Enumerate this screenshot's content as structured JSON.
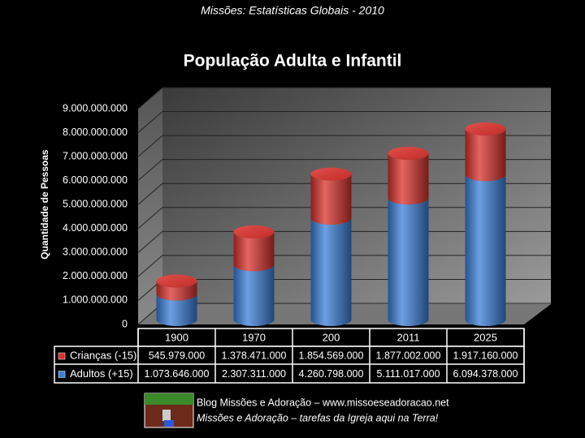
{
  "header": "Missões: Estatísticas Globais - 2010",
  "chart_data": {
    "type": "bar",
    "stacked": true,
    "title": "População Adulta e Infantil",
    "y_label": "Quantidade de Pessoas",
    "categories": [
      "1900",
      "1970",
      "200",
      "2011",
      "2025"
    ],
    "series": [
      {
        "name": "Adultos (+15)",
        "color": "#3b7fd9",
        "values": [
          1073646000,
          2307311000,
          4260798000,
          5111017000,
          6094378000
        ],
        "value_labels": [
          "1.073.646.000",
          "2.307.311.000",
          "4.260.798.000",
          "5.111.017.000",
          "6.094.378.000"
        ]
      },
      {
        "name": "Crianças (-15)",
        "color": "#d9312c",
        "values": [
          545979000,
          1378471000,
          1854569000,
          1877002000,
          1917160000
        ],
        "value_labels": [
          "545.979.000",
          "1.378.471.000",
          "1.854.569.000",
          "1.877.002.000",
          "1.917.160.000"
        ]
      }
    ],
    "ylim": [
      0,
      9000000000
    ],
    "yticks": [
      0,
      {
        "value": 1000000000,
        "label": "1.000.000.000"
      },
      {
        "value": 2000000000,
        "label": "2.000.000.000"
      },
      {
        "value": 3000000000,
        "label": "3.000.000.000"
      },
      {
        "value": 4000000000,
        "label": "4.000.000.000"
      },
      {
        "value": 5000000000,
        "label": "5.000.000.000"
      },
      {
        "value": 6000000000,
        "label": "6.000.000.000"
      },
      {
        "value": 7000000000,
        "label": "7.000.000.000"
      },
      {
        "value": 8000000000,
        "label": "8.000.000.000"
      },
      {
        "value": 9000000000,
        "label": "9.000.000.000"
      }
    ],
    "grid": true
  },
  "footer": {
    "line1": "Blog Missões e Adoração – www.missoeseadoracao.net",
    "line2": "Missões e Adoração – tarefas da Igreja aqui na Terra!"
  }
}
